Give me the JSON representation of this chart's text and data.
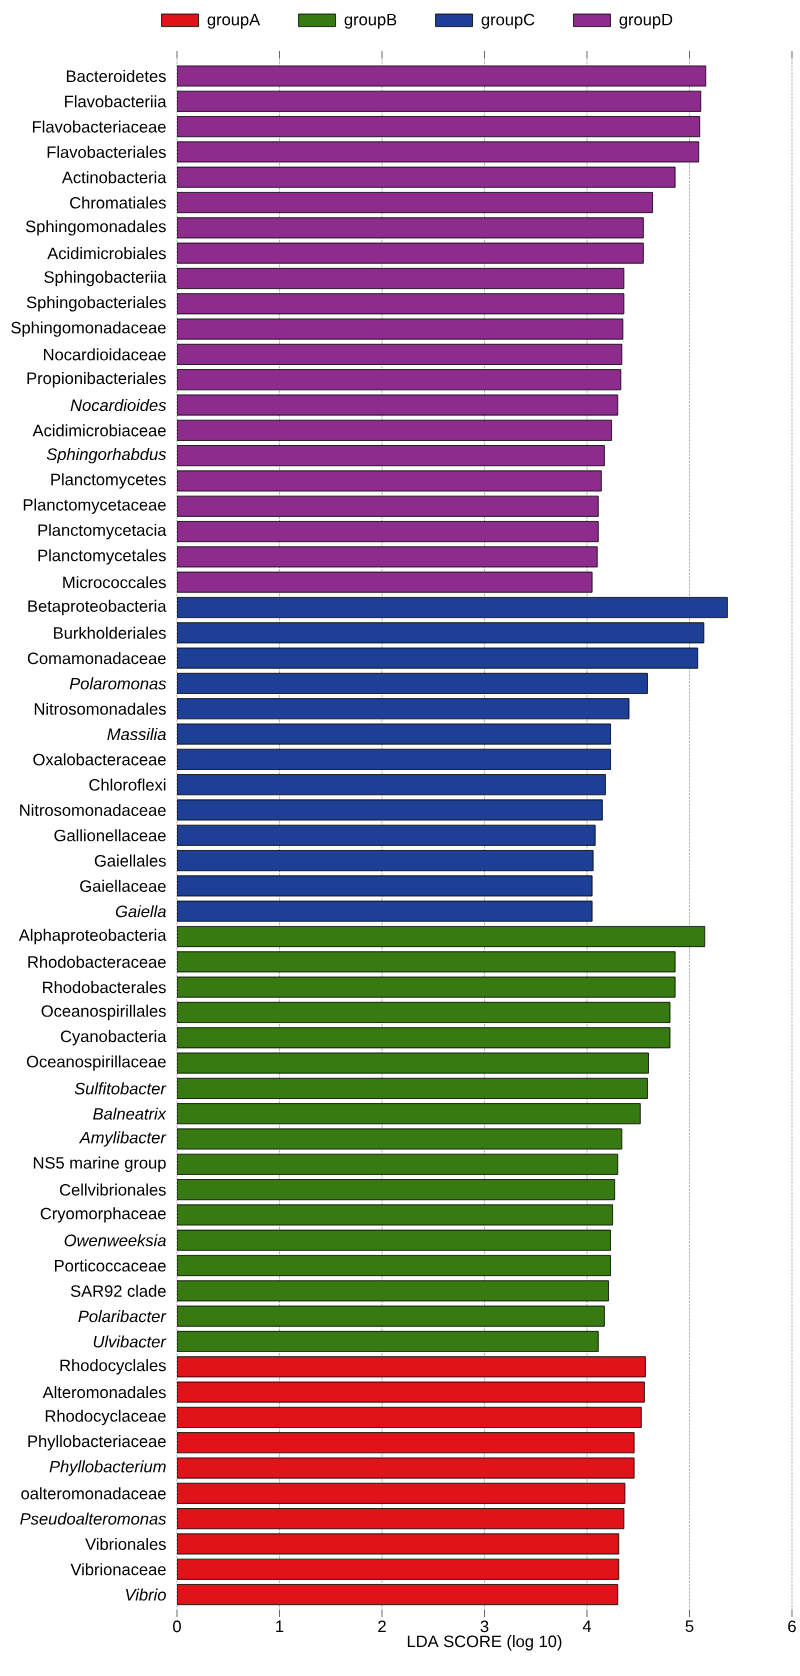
{
  "chart_data": {
    "type": "bar",
    "orientation": "horizontal",
    "categories": [
      "Bacteroidetes",
      "Flavobacteriia",
      "Flavobacteriaceae",
      "Flavobacteriales",
      "Actinobacteria",
      "Chromatiales",
      "Sphingomonadales",
      "Acidimicrobiales",
      "Sphingobacteriia",
      "Sphingobacteriales",
      "Sphingomonadaceae",
      "Nocardioidaceae",
      "Propionibacteriales",
      "*Nocardioides*",
      "Acidimicrobiaceae",
      "*Sphingorhabdus*",
      "Planctomycetes",
      "Planctomycetaceae",
      "Planctomycetacia",
      "Planctomycetales",
      "Micrococcales",
      "Betaproteobacteria",
      "Burkholderiales",
      "Comamonadaceae",
      "*Polaromonas*",
      "Nitrosomonadales",
      "*Massilia*",
      "Oxalobacteraceae",
      "Chloroflexi",
      "Nitrosomonadaceae",
      "Gallionellaceae",
      "Gaiellales",
      "Gaiellaceae",
      "*Gaiella*",
      "Alphaproteobacteria",
      "Rhodobacteraceae",
      "Rhodobacterales",
      "Oceanospirillales",
      "Cyanobacteria",
      "Oceanospirillaceae",
      "*Sulfitobacter*",
      "*Balneatrix*",
      "*Amylibacter*",
      "NS5 marine group",
      "Cellvibrionales",
      "Cryomorphaceae",
      "*Owenweeksia*",
      "Porticoccaceae",
      "SAR92 clade",
      "*Polaribacter*",
      "*Ulvibacter*",
      "Rhodocyclales",
      "Alteromonadales",
      "Rhodocyclaceae",
      "Phyllobacteriaceae",
      "*Phyllobacterium*",
      "oalteromonadaceae",
      "*Pseudoalteromonas*",
      "Vibrionales",
      "Vibrionaceae",
      "*Vibrio*"
    ],
    "series": [
      {
        "name": "groupA",
        "color": "#e0121a",
        "values": [
          null,
          null,
          null,
          null,
          null,
          null,
          null,
          null,
          null,
          null,
          null,
          null,
          null,
          null,
          null,
          null,
          null,
          null,
          null,
          null,
          null,
          null,
          null,
          null,
          null,
          null,
          null,
          null,
          null,
          null,
          null,
          null,
          null,
          null,
          null,
          null,
          null,
          null,
          null,
          null,
          null,
          null,
          null,
          null,
          null,
          null,
          null,
          null,
          null,
          null,
          null,
          4.57,
          4.56,
          4.53,
          4.46,
          4.46,
          4.37,
          4.36,
          4.31,
          4.31,
          4.3
        ]
      },
      {
        "name": "groupB",
        "color": "#387a12",
        "values": [
          null,
          null,
          null,
          null,
          null,
          null,
          null,
          null,
          null,
          null,
          null,
          null,
          null,
          null,
          null,
          null,
          null,
          null,
          null,
          null,
          null,
          null,
          null,
          null,
          null,
          null,
          null,
          null,
          null,
          null,
          null,
          null,
          null,
          null,
          5.15,
          4.86,
          4.86,
          4.81,
          4.81,
          4.6,
          4.59,
          4.52,
          4.34,
          4.3,
          4.27,
          4.25,
          4.23,
          4.23,
          4.21,
          4.17,
          4.11,
          null,
          null,
          null,
          null,
          null,
          null,
          null,
          null,
          null,
          null
        ]
      },
      {
        "name": "groupC",
        "color": "#1e3f96",
        "values": [
          null,
          null,
          null,
          null,
          null,
          null,
          null,
          null,
          null,
          null,
          null,
          null,
          null,
          null,
          null,
          null,
          null,
          null,
          null,
          null,
          null,
          5.37,
          5.14,
          5.08,
          4.59,
          4.41,
          4.23,
          4.23,
          4.18,
          4.15,
          4.08,
          4.06,
          4.05,
          4.05,
          null,
          null,
          null,
          null,
          null,
          null,
          null,
          null,
          null,
          null,
          null,
          null,
          null,
          null,
          null,
          null,
          null,
          null,
          null,
          null,
          null,
          null,
          null,
          null,
          null,
          null,
          null
        ]
      },
      {
        "name": "groupD",
        "color": "#8e2c8e",
        "values": [
          5.16,
          5.11,
          5.1,
          5.09,
          4.86,
          4.64,
          4.55,
          4.55,
          4.36,
          4.36,
          4.35,
          4.34,
          4.33,
          4.3,
          4.24,
          4.17,
          4.14,
          4.11,
          4.11,
          4.1,
          4.05,
          null,
          null,
          null,
          null,
          null,
          null,
          null,
          null,
          null,
          null,
          null,
          null,
          null,
          null,
          null,
          null,
          null,
          null,
          null,
          null,
          null,
          null,
          null,
          null,
          null,
          null,
          null,
          null,
          null,
          null,
          null,
          null,
          null,
          null,
          null,
          null,
          null,
          null,
          null,
          null
        ]
      }
    ],
    "xlim": [
      0,
      6
    ],
    "xticks": [
      0,
      1,
      2,
      3,
      4,
      5,
      6
    ],
    "xlabel": "LDA SCORE (log 10)",
    "grid": "x",
    "legend": "top"
  }
}
